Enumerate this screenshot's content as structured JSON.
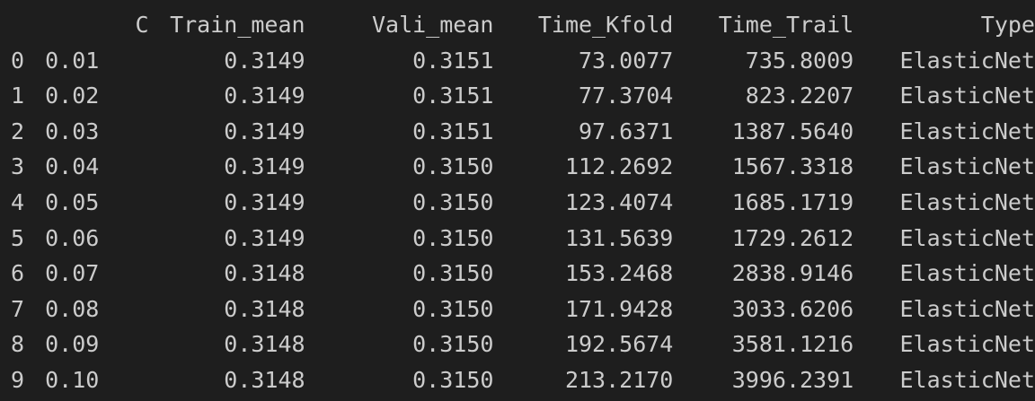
{
  "table": {
    "headers": [
      "",
      "C",
      "Train_mean",
      "Vali_mean",
      "Time_Kfold",
      "Time_Trail",
      "Type"
    ],
    "rows": [
      [
        "0",
        "0.01",
        "0.3149",
        "0.3151",
        "73.0077",
        "735.8009",
        "ElasticNet"
      ],
      [
        "1",
        "0.02",
        "0.3149",
        "0.3151",
        "77.3704",
        "823.2207",
        "ElasticNet"
      ],
      [
        "2",
        "0.03",
        "0.3149",
        "0.3151",
        "97.6371",
        "1387.5640",
        "ElasticNet"
      ],
      [
        "3",
        "0.04",
        "0.3149",
        "0.3150",
        "112.2692",
        "1567.3318",
        "ElasticNet"
      ],
      [
        "4",
        "0.05",
        "0.3149",
        "0.3150",
        "123.4074",
        "1685.1719",
        "ElasticNet"
      ],
      [
        "5",
        "0.06",
        "0.3149",
        "0.3150",
        "131.5639",
        "1729.2612",
        "ElasticNet"
      ],
      [
        "6",
        "0.07",
        "0.3148",
        "0.3150",
        "153.2468",
        "2838.9146",
        "ElasticNet"
      ],
      [
        "7",
        "0.08",
        "0.3148",
        "0.3150",
        "171.9428",
        "3033.6206",
        "ElasticNet"
      ],
      [
        "8",
        "0.09",
        "0.3148",
        "0.3150",
        "192.5674",
        "3581.1216",
        "ElasticNet"
      ],
      [
        "9",
        "0.10",
        "0.3148",
        "0.3150",
        "213.2170",
        "3996.2391",
        "ElasticNet"
      ]
    ]
  },
  "colors": {
    "background": "#1e1e1e",
    "text": "#cccccc"
  }
}
